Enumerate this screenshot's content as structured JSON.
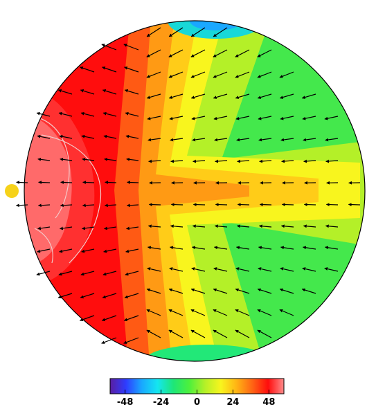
{
  "figure": {
    "subsolar_marker_color": "#f6d21a",
    "contour_line_color": "#f3c9c9",
    "vector_color": "#000000"
  },
  "colorbar": {
    "min": -58,
    "max": 58,
    "ticks": [
      "-48",
      "-24",
      "0",
      "24",
      "48"
    ],
    "tick_values": [
      -48,
      -24,
      0,
      24,
      48
    ],
    "colors": [
      "#5a1ea0",
      "#2e3cff",
      "#19a8ff",
      "#14e6f0",
      "#1ee678",
      "#4cf03c",
      "#b4f028",
      "#f8f51e",
      "#ffb414",
      "#ff6414",
      "#ff0d0d",
      "#ff8b8b"
    ]
  },
  "contour_levels": [
    {
      "color": "#ff6a6a",
      "value": 50
    },
    {
      "color": "#ff3030",
      "value": 44
    },
    {
      "color": "#ff0d0d",
      "value": 36
    },
    {
      "color": "#ff5a14",
      "value": 28
    },
    {
      "color": "#ff9a14",
      "value": 20
    },
    {
      "color": "#ffcc18",
      "value": 12
    },
    {
      "color": "#f8f51e",
      "value": 4
    },
    {
      "color": "#b4f028",
      "value": -4
    },
    {
      "color": "#5eec32",
      "value": -12
    },
    {
      "color": "#22e878",
      "value": -20
    },
    {
      "color": "#18d8d8",
      "value": -28
    },
    {
      "color": "#1aa8ff",
      "value": -36
    }
  ]
}
